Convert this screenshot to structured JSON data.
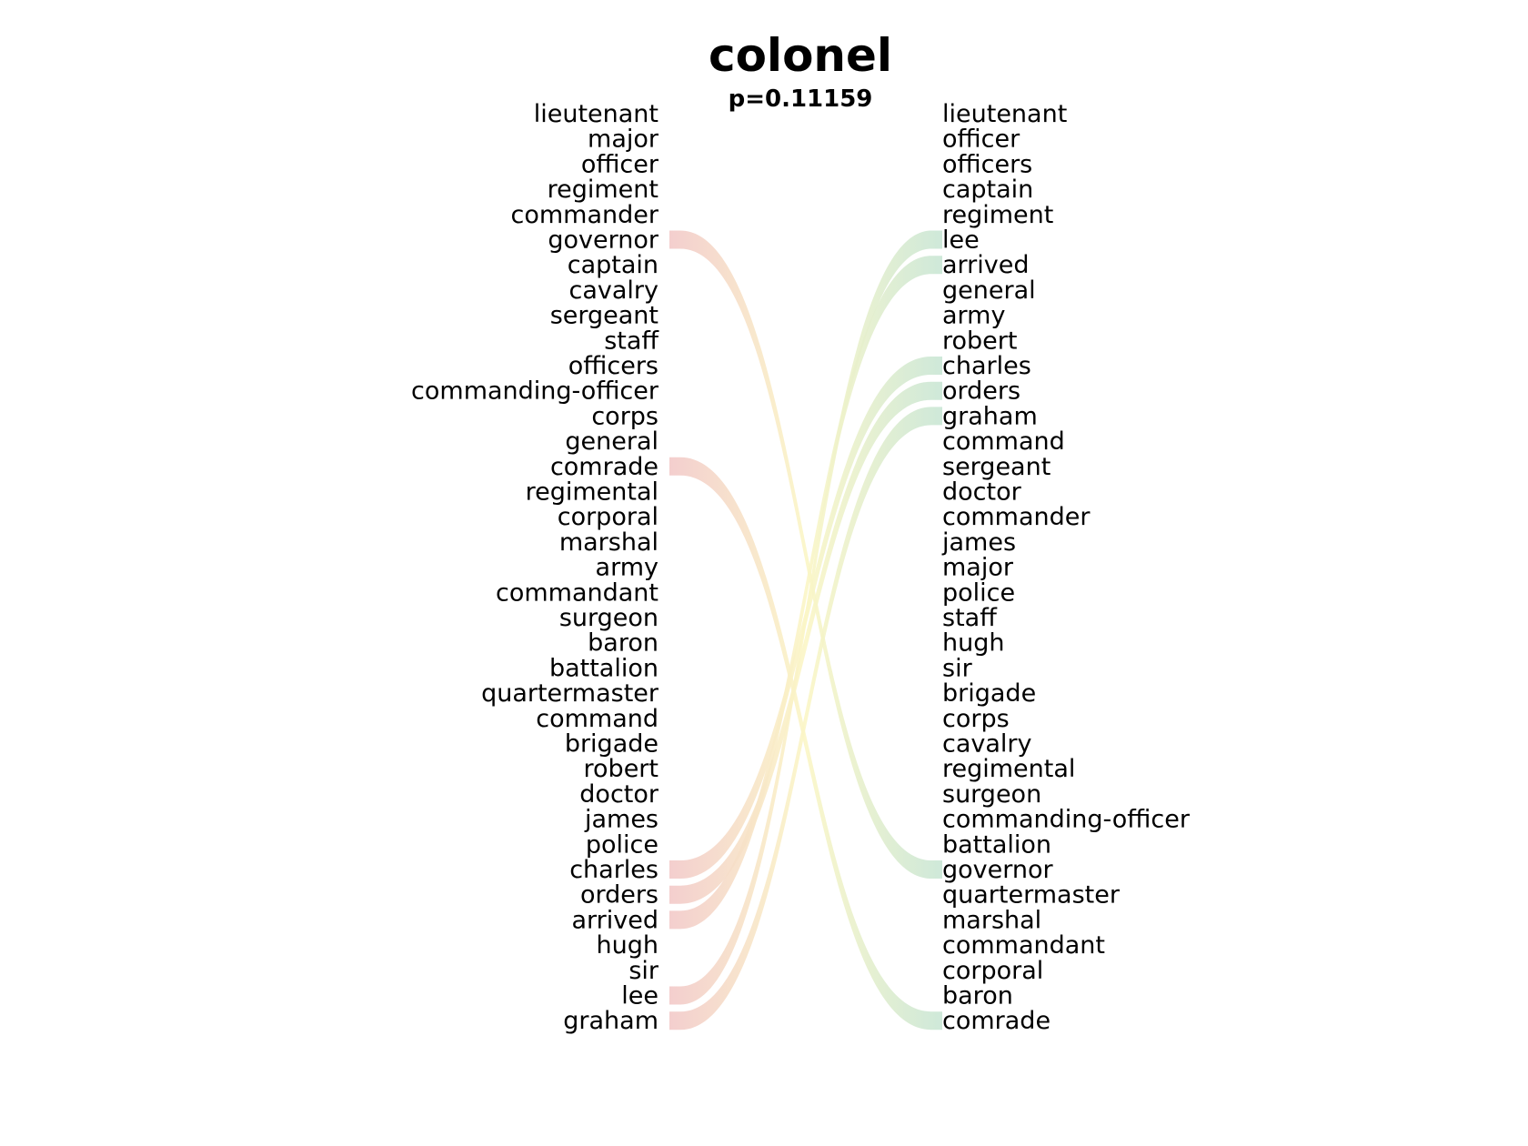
{
  "chart_data": {
    "type": "bump",
    "title": "colonel",
    "subtitle": "p=0.11159",
    "left_list": [
      "lieutenant",
      "major",
      "officer",
      "regiment",
      "commander",
      "governor",
      "captain",
      "cavalry",
      "sergeant",
      "staff",
      "officers",
      "commanding-officer",
      "corps",
      "general",
      "comrade",
      "regimental",
      "corporal",
      "marshal",
      "army",
      "commandant",
      "surgeon",
      "baron",
      "battalion",
      "quartermaster",
      "command",
      "brigade",
      "robert",
      "doctor",
      "james",
      "police",
      "charles",
      "orders",
      "arrived",
      "hugh",
      "sir",
      "lee",
      "graham"
    ],
    "right_list": [
      "lieutenant",
      "officer",
      "officers",
      "captain",
      "regiment",
      "lee",
      "arrived",
      "general",
      "army",
      "robert",
      "charles",
      "orders",
      "graham",
      "command",
      "sergeant",
      "doctor",
      "commander",
      "james",
      "major",
      "police",
      "staff",
      "hugh",
      "sir",
      "brigade",
      "corps",
      "cavalry",
      "regimental",
      "surgeon",
      "commanding-officer",
      "battalion",
      "governor",
      "quartermaster",
      "marshal",
      "commandant",
      "corporal",
      "baron",
      "comrade"
    ],
    "links": [
      {
        "word": "governor",
        "from": 5,
        "to": 30
      },
      {
        "word": "comrade",
        "from": 14,
        "to": 36
      },
      {
        "word": "charles",
        "from": 30,
        "to": 10
      },
      {
        "word": "orders",
        "from": 31,
        "to": 11
      },
      {
        "word": "arrived",
        "from": 32,
        "to": 6
      },
      {
        "word": "lee",
        "from": 35,
        "to": 5
      },
      {
        "word": "graham",
        "from": 36,
        "to": 12
      }
    ],
    "colors": {
      "left_end": "#f2c9c9",
      "mid": "#fbf6c6",
      "right_end": "#c9e6d5"
    }
  }
}
